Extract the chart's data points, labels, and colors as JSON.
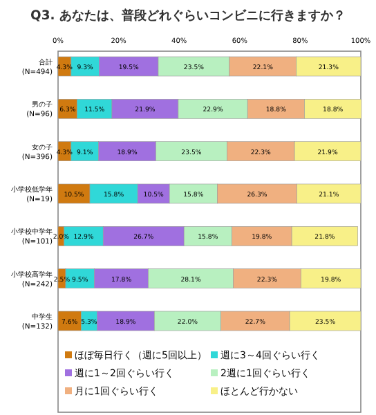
{
  "chart_data": {
    "type": "bar",
    "orientation": "horizontal",
    "stacked": true,
    "title": "Q3. あなたは、普段どれぐらいコンビニに行きますか？",
    "categories": [
      "合計\n(N=494)",
      "男の子\n(N=96)",
      "女の子\n(N=396)",
      "小学校低学年\n(N=19)",
      "小学校中学年\n(N=101)",
      "小学校高学年\n(N=242)",
      "中学生\n(N=132)"
    ],
    "xlim": [
      0,
      100
    ],
    "xticks": [
      {
        "value": 0,
        "label": "0%"
      },
      {
        "value": 20,
        "label": "20%"
      },
      {
        "value": 40,
        "label": "40%"
      },
      {
        "value": 60,
        "label": "60%"
      },
      {
        "value": 80,
        "label": "80%"
      },
      {
        "value": 100,
        "label": "100%"
      }
    ],
    "legend": "bottom",
    "series": [
      {
        "name": "ほぼ毎日行く（週に5回以上）",
        "color": "#d07a10",
        "values": [
          4.3,
          6.3,
          4.3,
          10.5,
          2.0,
          2.5,
          7.6
        ],
        "value_labels": [
          "4.3%",
          "6.3%",
          "4.3%",
          "10.5%",
          "2.0%",
          "2.5%",
          "7.6%"
        ]
      },
      {
        "name": "週に3～4回ぐらい行く",
        "color": "#30d8d8",
        "values": [
          9.3,
          11.5,
          9.1,
          15.8,
          12.9,
          9.5,
          5.3
        ],
        "value_labels": [
          "9.3%",
          "11.5%",
          "9.1%",
          "15.8%",
          "12.9%",
          "9.5%",
          "5.3%"
        ]
      },
      {
        "name": "週に1～2回ぐらい行く",
        "color": "#a070e0",
        "values": [
          19.5,
          21.9,
          18.9,
          10.5,
          26.7,
          17.8,
          18.9
        ],
        "value_labels": [
          "19.5%",
          "21.9%",
          "18.9%",
          "10.5%",
          "26.7%",
          "17.8%",
          "18.9%"
        ]
      },
      {
        "name": "2週に1回ぐらい行く",
        "color": "#b8f0c0",
        "values": [
          23.5,
          22.9,
          23.5,
          15.8,
          15.8,
          28.1,
          22.0
        ],
        "value_labels": [
          "23.5%",
          "22.9%",
          "23.5%",
          "15.8%",
          "15.8%",
          "28.1%",
          "22.0%"
        ]
      },
      {
        "name": "月に1回ぐらい行く",
        "color": "#f0b080",
        "values": [
          22.1,
          18.8,
          22.3,
          26.3,
          19.8,
          22.3,
          22.7
        ],
        "value_labels": [
          "22.1%",
          "18.8%",
          "22.3%",
          "26.3%",
          "19.8%",
          "22.3%",
          "22.7%"
        ]
      },
      {
        "name": "ほとんど行かない",
        "color": "#f8f088",
        "values": [
          21.3,
          18.8,
          21.9,
          21.1,
          21.8,
          19.8,
          23.5
        ],
        "value_labels": [
          "21.3%",
          "18.8%",
          "21.9%",
          "21.1%",
          "21.8%",
          "19.8%",
          "23.5%"
        ]
      }
    ]
  }
}
